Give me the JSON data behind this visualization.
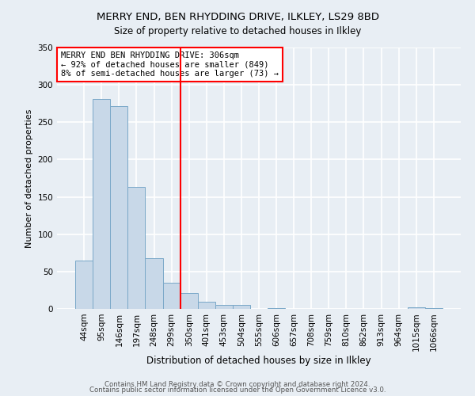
{
  "title": "MERRY END, BEN RHYDDING DRIVE, ILKLEY, LS29 8BD",
  "subtitle": "Size of property relative to detached houses in Ilkley",
  "xlabel": "Distribution of detached houses by size in Ilkley",
  "ylabel": "Number of detached properties",
  "bar_labels": [
    "44sqm",
    "95sqm",
    "146sqm",
    "197sqm",
    "248sqm",
    "299sqm",
    "350sqm",
    "401sqm",
    "453sqm",
    "504sqm",
    "555sqm",
    "606sqm",
    "657sqm",
    "708sqm",
    "759sqm",
    "810sqm",
    "862sqm",
    "913sqm",
    "964sqm",
    "1015sqm",
    "1066sqm"
  ],
  "bar_values": [
    65,
    281,
    272,
    163,
    68,
    35,
    21,
    10,
    5,
    5,
    0,
    1,
    0,
    0,
    0,
    0,
    0,
    0,
    0,
    2,
    1
  ],
  "bar_color": "#c8d8e8",
  "bar_edge_color": "#7aa8c8",
  "vline_x": 5.5,
  "vline_color": "red",
  "annotation_text": "MERRY END BEN RHYDDING DRIVE: 306sqm\n← 92% of detached houses are smaller (849)\n8% of semi-detached houses are larger (73) →",
  "annotation_box_facecolor": "white",
  "annotation_box_edgecolor": "red",
  "ylim": [
    0,
    350
  ],
  "yticks": [
    0,
    50,
    100,
    150,
    200,
    250,
    300,
    350
  ],
  "footer1": "Contains HM Land Registry data © Crown copyright and database right 2024.",
  "footer2": "Contains public sector information licensed under the Open Government Licence v3.0.",
  "background_color": "#e8eef4",
  "grid_color": "white",
  "title_fontsize": 9.5,
  "subtitle_fontsize": 8.5,
  "xlabel_fontsize": 8.5,
  "ylabel_fontsize": 8,
  "tick_fontsize": 7.5,
  "annotation_fontsize": 7.5,
  "footer_fontsize": 6.2
}
